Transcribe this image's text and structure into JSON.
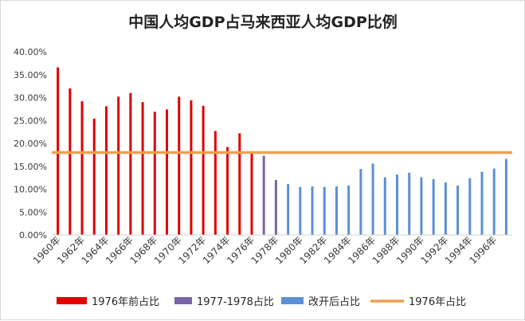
{
  "chart_data": {
    "type": "bar",
    "title": "中国人均GDP占马来西亚人均GDP比例",
    "xlabel": "",
    "ylabel": "",
    "ylim": [
      0,
      0.4
    ],
    "y_ticks": [
      "0.00%",
      "5.00%",
      "10.00%",
      "15.00%",
      "20.00%",
      "25.00%",
      "30.00%",
      "35.00%",
      "40.00%"
    ],
    "y_tick_values": [
      0,
      0.05,
      0.1,
      0.15,
      0.2,
      0.25,
      0.3,
      0.35,
      0.4
    ],
    "grid": false,
    "legend_position": "bottom",
    "categories": [
      "1960年",
      "1961年",
      "1962年",
      "1963年",
      "1964年",
      "1965年",
      "1966年",
      "1967年",
      "1968年",
      "1969年",
      "1970年",
      "1971年",
      "1972年",
      "1973年",
      "1974年",
      "1975年",
      "1976年",
      "1977年",
      "1978年",
      "1979年",
      "1980年",
      "1981年",
      "1982年",
      "1983年",
      "1984年",
      "1985年",
      "1986年",
      "1987年",
      "1988年",
      "1989年",
      "1990年",
      "1991年",
      "1992年",
      "1993年",
      "1994年",
      "1995年",
      "1996年",
      "1997年"
    ],
    "x_tick_labels_shown": [
      "1960年",
      "1962年",
      "1964年",
      "1966年",
      "1968年",
      "1970年",
      "1972年",
      "1974年",
      "1976年",
      "1978年",
      "1980年",
      "1982年",
      "1984年",
      "1986年",
      "1988年",
      "1990年",
      "1992年",
      "1994年",
      "1996年"
    ],
    "series": [
      {
        "name": "1976年前占比",
        "kind": "bar",
        "color": "#e00000",
        "values": [
          0.366,
          0.32,
          0.292,
          0.254,
          0.281,
          0.302,
          0.31,
          0.29,
          0.269,
          0.274,
          0.302,
          0.294,
          0.282,
          0.227,
          0.192,
          0.222,
          0.18,
          null,
          null,
          null,
          null,
          null,
          null,
          null,
          null,
          null,
          null,
          null,
          null,
          null,
          null,
          null,
          null,
          null,
          null,
          null,
          null,
          null
        ]
      },
      {
        "name": "1977-1978占比",
        "kind": "bar",
        "color": "#7b63a8",
        "values": [
          null,
          null,
          null,
          null,
          null,
          null,
          null,
          null,
          null,
          null,
          null,
          null,
          null,
          null,
          null,
          null,
          null,
          0.173,
          0.12,
          null,
          null,
          null,
          null,
          null,
          null,
          null,
          null,
          null,
          null,
          null,
          null,
          null,
          null,
          null,
          null,
          null,
          null,
          null
        ]
      },
      {
        "name": "改开后占比",
        "kind": "bar",
        "color": "#5b8fd6",
        "values": [
          null,
          null,
          null,
          null,
          null,
          null,
          null,
          null,
          null,
          null,
          null,
          null,
          null,
          null,
          null,
          null,
          null,
          null,
          null,
          0.111,
          0.105,
          0.106,
          0.105,
          0.106,
          0.108,
          0.144,
          0.156,
          0.126,
          0.132,
          0.136,
          0.126,
          0.122,
          0.115,
          0.108,
          0.124,
          0.138,
          0.145,
          0.166
        ]
      },
      {
        "name": "1976年占比",
        "kind": "line",
        "color": "#f0a050",
        "values": [
          0.18,
          0.18,
          0.18,
          0.18,
          0.18,
          0.18,
          0.18,
          0.18,
          0.18,
          0.18,
          0.18,
          0.18,
          0.18,
          0.18,
          0.18,
          0.18,
          0.18,
          0.18,
          0.18,
          0.18,
          0.18,
          0.18,
          0.18,
          0.18,
          0.18,
          0.18,
          0.18,
          0.18,
          0.18,
          0.18,
          0.18,
          0.18,
          0.18,
          0.18,
          0.18,
          0.18,
          0.18,
          0.18
        ]
      }
    ]
  }
}
